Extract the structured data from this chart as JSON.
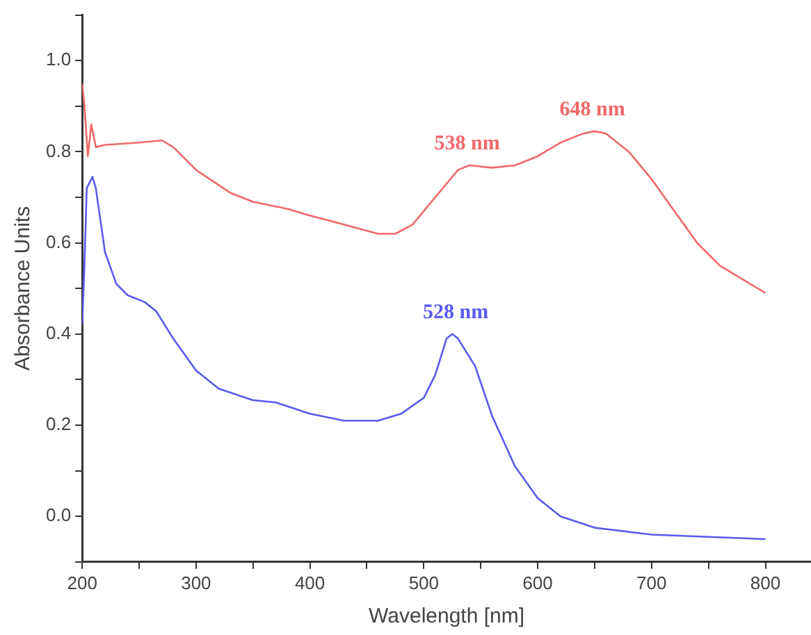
{
  "chart_data": {
    "type": "line",
    "xlabel": "Wavelength [nm]",
    "ylabel": "Absorbance Units",
    "xlim": [
      200,
      840
    ],
    "ylim": [
      -0.1,
      1.1
    ],
    "xticks": [
      200,
      {
        "value": 250,
        "label": null
      },
      300,
      {
        "value": 350,
        "label": null
      },
      400,
      {
        "value": 450,
        "label": null
      },
      500,
      {
        "value": 550,
        "label": null
      },
      600,
      {
        "value": 650,
        "label": null
      },
      700,
      {
        "value": 750,
        "label": null
      },
      800
    ],
    "yticks": [
      {
        "value": -0.1,
        "label": null
      },
      {
        "value": 0,
        "label": "0.0"
      },
      {
        "value": 0.1,
        "label": null
      },
      0.2,
      {
        "value": 0.3,
        "label": null
      },
      0.4,
      {
        "value": 0.5,
        "label": null
      },
      0.6,
      {
        "value": 0.7,
        "label": null
      },
      0.8,
      {
        "value": 0.9,
        "label": null
      },
      {
        "value": 1,
        "label": "1.0"
      },
      {
        "value": 1.1,
        "label": null
      }
    ],
    "grid": false,
    "legend": false,
    "marker": "none",
    "line_style": "solid",
    "series": [
      {
        "color": "#f06868",
        "x": [
          200,
          202,
          205,
          208,
          212,
          220,
          250,
          270,
          280,
          300,
          330,
          350,
          380,
          400,
          430,
          460,
          475,
          490,
          510,
          530,
          540,
          560,
          580,
          600,
          620,
          640,
          650,
          660,
          680,
          700,
          720,
          740,
          760,
          780,
          800
        ],
        "values": [
          0.95,
          0.9,
          0.79,
          0.86,
          0.81,
          0.815,
          0.82,
          0.825,
          0.81,
          0.76,
          0.71,
          0.69,
          0.675,
          0.66,
          0.64,
          0.62,
          0.62,
          0.64,
          0.7,
          0.76,
          0.77,
          0.765,
          0.77,
          0.79,
          0.82,
          0.84,
          0.845,
          0.84,
          0.8,
          0.74,
          0.67,
          0.6,
          0.55,
          0.52,
          0.49
        ]
      },
      {
        "color": "#5a5af0",
        "x": [
          200,
          202,
          204,
          206,
          209,
          212,
          220,
          230,
          240,
          255,
          265,
          280,
          300,
          320,
          350,
          370,
          400,
          430,
          460,
          480,
          500,
          510,
          520,
          525,
          530,
          545,
          560,
          580,
          600,
          620,
          650,
          700,
          750,
          800
        ],
        "values": [
          0.42,
          0.55,
          0.72,
          0.73,
          0.745,
          0.72,
          0.58,
          0.51,
          0.485,
          0.47,
          0.45,
          0.39,
          0.32,
          0.28,
          0.255,
          0.25,
          0.225,
          0.21,
          0.21,
          0.225,
          0.26,
          0.31,
          0.39,
          0.4,
          0.39,
          0.33,
          0.22,
          0.11,
          0.04,
          0,
          -0.025,
          -0.04,
          -0.045,
          -0.05
        ]
      }
    ],
    "annotations": [
      {
        "text": "538 nm",
        "x": 538,
        "y": 0.77
      },
      {
        "text": "648 nm",
        "x": 648,
        "y": 0.845
      },
      {
        "text": "528 nm",
        "x": 528,
        "y": 0.4
      }
    ]
  }
}
